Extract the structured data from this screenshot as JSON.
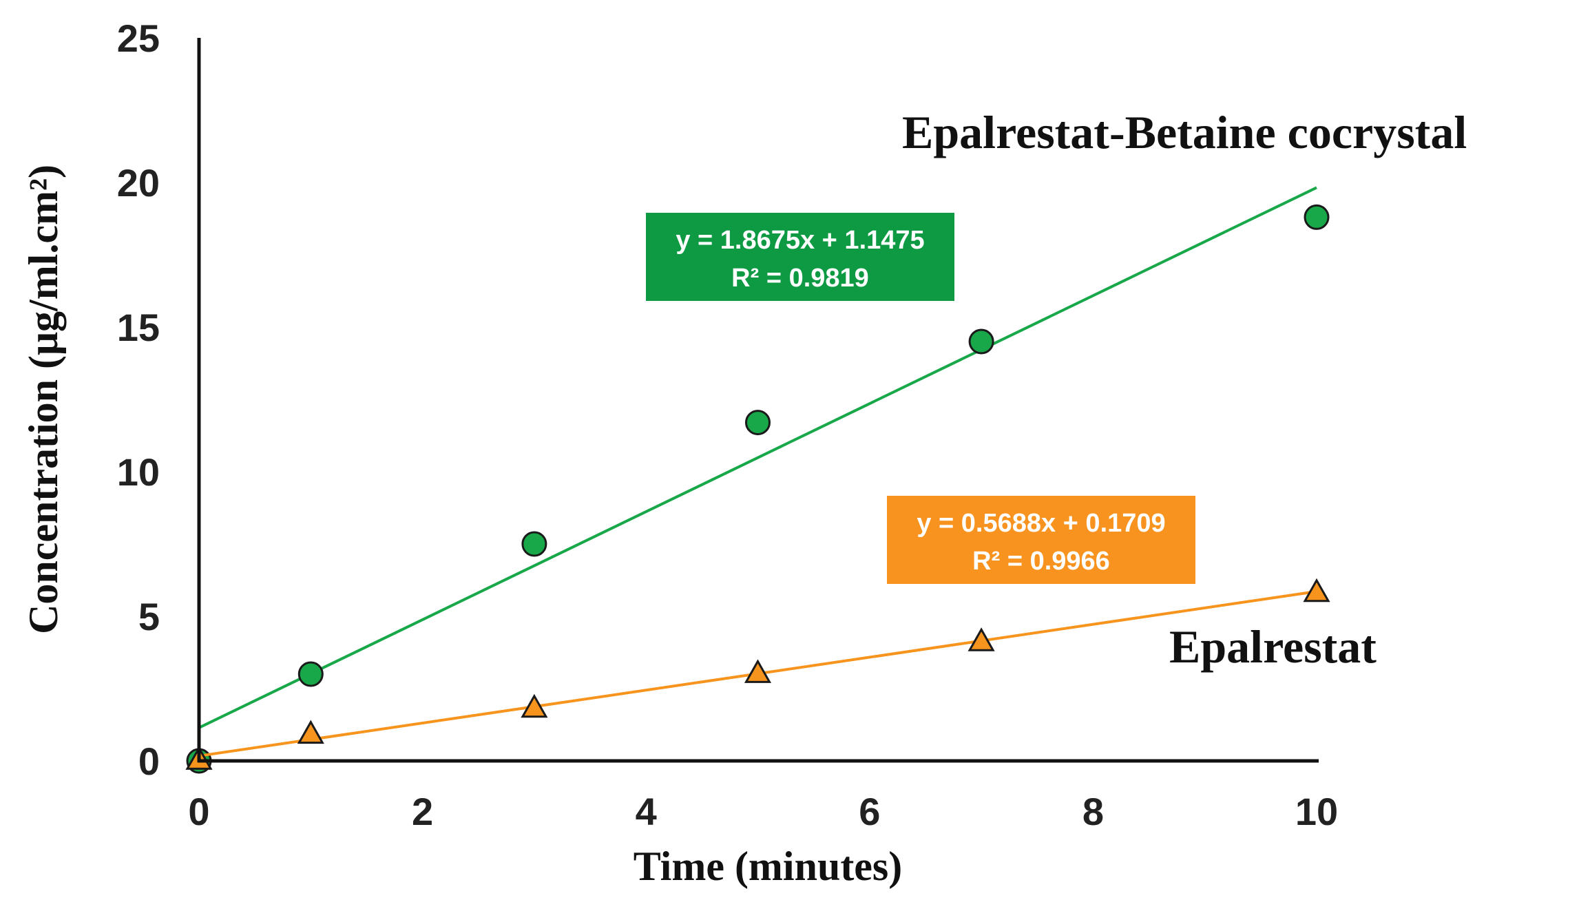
{
  "chart_data": {
    "type": "scatter",
    "title": "",
    "xlabel": "Time (minutes)",
    "ylabel": "Concentration (μg/ml.cm²)",
    "xlim": [
      0,
      10
    ],
    "ylim": [
      0,
      25
    ],
    "xticks": [
      "0",
      "2",
      "4",
      "6",
      "8",
      "10"
    ],
    "yticks": [
      "0",
      "5",
      "10",
      "15",
      "20",
      "25"
    ],
    "series": [
      {
        "name": "Epalrestat-Betaine cocrystal",
        "color": "#18a84a",
        "marker": "circle",
        "x": [
          0,
          1,
          3,
          5,
          7,
          10
        ],
        "y": [
          0,
          3.0,
          7.5,
          11.7,
          14.5,
          18.8
        ],
        "trendline": {
          "slope": 1.8675,
          "intercept": 1.1475
        },
        "equation": "y = 1.8675x + 1.1475",
        "r2": "R² = 0.9819",
        "box_color": "#0e9a43"
      },
      {
        "name": "Epalrestat",
        "color": "#f7941d",
        "marker": "triangle",
        "x": [
          0,
          1,
          3,
          5,
          7,
          10
        ],
        "y": [
          0,
          0.9,
          1.8,
          3.0,
          4.1,
          5.8
        ],
        "trendline": {
          "slope": 0.5688,
          "intercept": 0.1709
        },
        "equation": "y = 0.5688x + 0.1709",
        "r2": "R² = 0.9966",
        "box_color": "#f7931e"
      }
    ]
  }
}
